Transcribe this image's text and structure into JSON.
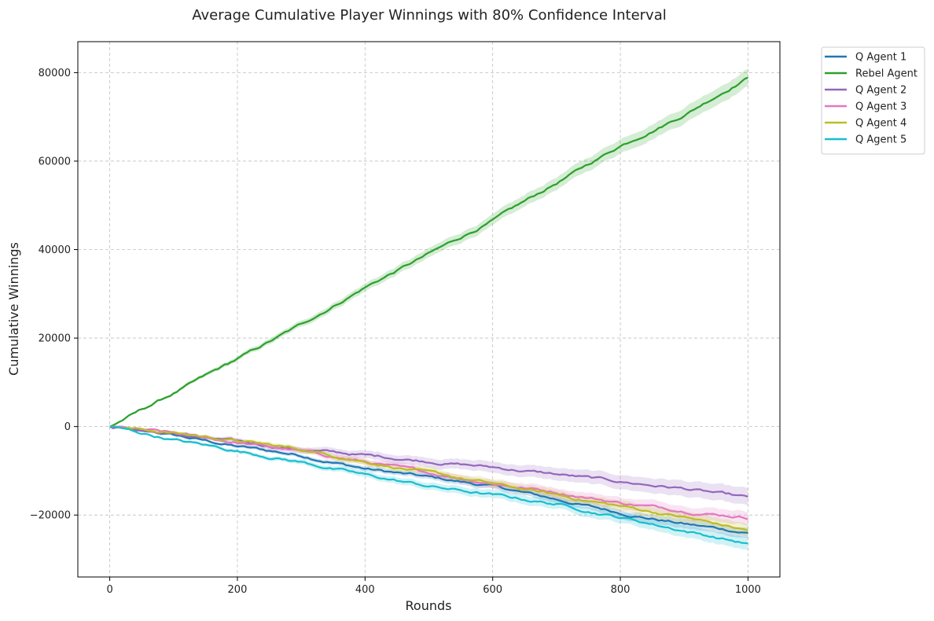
{
  "chart_data": {
    "type": "line",
    "title": "Average Cumulative Player Winnings with 80% Confidence Interval",
    "xlabel": "Rounds",
    "ylabel": "Cumulative Winnings",
    "xlim": [
      -50,
      1050
    ],
    "ylim": [
      -34000,
      87000
    ],
    "xticks": [
      0,
      200,
      400,
      600,
      800,
      1000
    ],
    "yticks": [
      -20000,
      0,
      20000,
      40000,
      60000,
      80000
    ],
    "ytick_labels": [
      "−20000",
      "0",
      "20000",
      "40000",
      "60000",
      "80000"
    ],
    "grid": true,
    "legend_position": "outside top-right",
    "band": "80% confidence interval",
    "x": [
      0,
      100,
      200,
      300,
      400,
      500,
      600,
      700,
      800,
      900,
      1000
    ],
    "series": [
      {
        "name": "Q Agent 1",
        "color": "#1f77b4",
        "values": [
          0,
          -2000,
          -4500,
          -6500,
          -9500,
          -11500,
          -13500,
          -16500,
          -19500,
          -22000,
          -24000
        ],
        "ci_halfwidth": 1000
      },
      {
        "name": "Rebel Agent",
        "color": "#2ca02c",
        "values": [
          0,
          7500,
          15200,
          23000,
          31500,
          39000,
          46500,
          55000,
          63500,
          70500,
          79000
        ],
        "ci_halfwidth": 1800
      },
      {
        "name": "Q Agent 2",
        "color": "#9467bd",
        "values": [
          0,
          -1800,
          -3500,
          -5200,
          -6500,
          -7800,
          -9200,
          -10800,
          -12500,
          -14000,
          -16200
        ],
        "ci_halfwidth": 1800
      },
      {
        "name": "Q Agent 3",
        "color": "#e377c2",
        "values": [
          0,
          -1600,
          -3600,
          -5600,
          -8000,
          -10500,
          -12800,
          -14800,
          -17200,
          -19000,
          -20500
        ],
        "ci_halfwidth": 1400
      },
      {
        "name": "Q Agent 4",
        "color": "#bcbd22",
        "values": [
          0,
          -1400,
          -3200,
          -5200,
          -7800,
          -10500,
          -13000,
          -15500,
          -18000,
          -20500,
          -23500
        ],
        "ci_halfwidth": 1300
      },
      {
        "name": "Q Agent 5",
        "color": "#17becf",
        "values": [
          0,
          -3000,
          -5500,
          -8000,
          -11000,
          -13500,
          -15500,
          -17500,
          -20500,
          -23500,
          -26500
        ],
        "ci_halfwidth": 1300
      }
    ]
  }
}
